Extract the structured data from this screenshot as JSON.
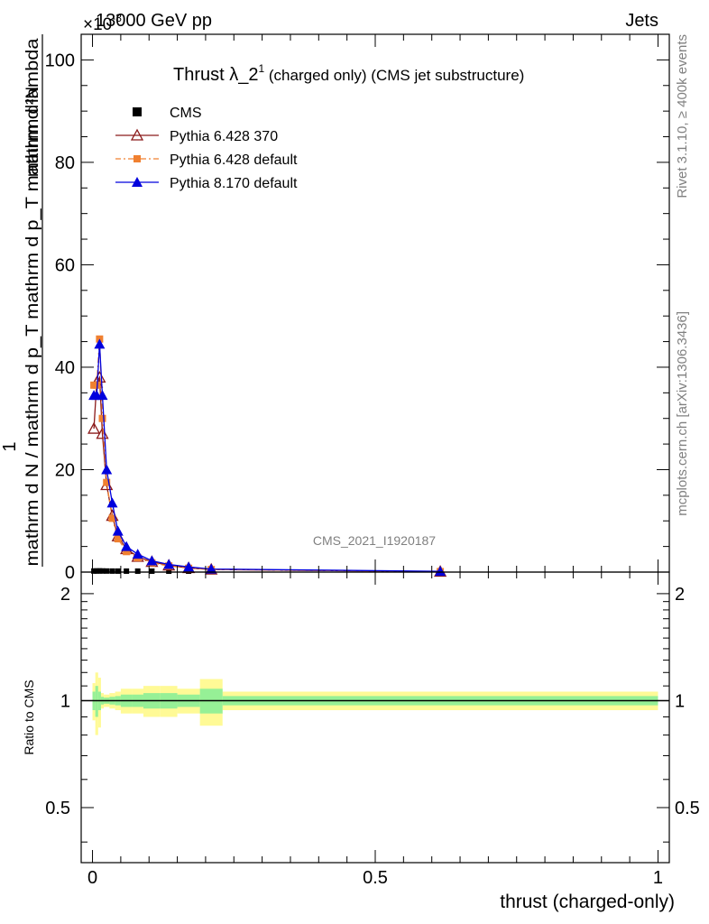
{
  "header": {
    "left": "13000 GeV pp",
    "right": "Jets",
    "exponent": "×10",
    "exponent_power": "-3"
  },
  "side": {
    "rivet": "Rivet 3.1.10, ≥ 400k events",
    "mcplots": "mcplots.cern.ch [arXiv:1306.3436]"
  },
  "watermark": "CMS_2021_I1920187",
  "chart_data": [
    {
      "type": "line",
      "title": "Thrust λ_2¹ (charged only) (CMS jet substructure)",
      "title_main": "Thrust λ_2",
      "title_sup": "1",
      "title_rest": " (charged only) (CMS jet substructure)",
      "xlabel": "thrust (charged-only)",
      "ylabel_num": "mathrm d²N",
      "ylabel_one": "1",
      "ylabel_den": "mathrm d N / mathrm d p_T mathrm d p_T mathrm d lambda",
      "xlim": [
        -0.02,
        1.02
      ],
      "ylim": [
        0,
        105
      ],
      "yticks": [
        0,
        20,
        40,
        60,
        80,
        100
      ],
      "ytick_labels": [
        "0",
        "20",
        "40",
        "60",
        "80",
        "100"
      ],
      "legend": "top-left",
      "series": [
        {
          "name": "CMS",
          "color": "#000000",
          "marker": "square",
          "x": [
            0.0025,
            0.0075,
            0.0125,
            0.0175,
            0.025,
            0.035,
            0.045,
            0.06,
            0.08,
            0.105,
            0.135,
            0.17,
            0.21,
            0.615
          ],
          "y": [
            0.03,
            0.04,
            0.05,
            0.04,
            0.03,
            0.02,
            0.015,
            0.01,
            0.007,
            0.004,
            0.003,
            0.002,
            0.001,
            0.0002
          ]
        },
        {
          "name": "Pythia 6.428 370",
          "color": "#8b1a1a",
          "marker": "triangle-open",
          "x": [
            0.0025,
            0.0075,
            0.0125,
            0.0175,
            0.025,
            0.035,
            0.045,
            0.06,
            0.08,
            0.105,
            0.135,
            0.17,
            0.21,
            0.615
          ],
          "y": [
            28,
            37,
            38,
            27,
            17,
            11,
            7,
            4.5,
            3,
            2,
            1.3,
            0.8,
            0.5,
            0.1
          ]
        },
        {
          "name": "Pythia 6.428 default",
          "color": "#f08030",
          "marker": "square",
          "x": [
            0.0025,
            0.0075,
            0.0125,
            0.0175,
            0.025,
            0.035,
            0.045,
            0.06,
            0.08,
            0.105,
            0.135,
            0.17,
            0.21,
            0.615
          ],
          "y": [
            36.5,
            36.5,
            45.5,
            30,
            17.5,
            10.5,
            6.5,
            4,
            2.8,
            1.8,
            1.2,
            0.75,
            0.5,
            0.1
          ]
        },
        {
          "name": "Pythia 8.170 default",
          "color": "#0000dd",
          "marker": "triangle",
          "x": [
            0.0025,
            0.0075,
            0.0125,
            0.0175,
            0.025,
            0.035,
            0.045,
            0.06,
            0.08,
            0.105,
            0.135,
            0.17,
            0.21,
            0.615
          ],
          "y": [
            34.5,
            34.5,
            44.5,
            34.5,
            20,
            13.5,
            8,
            5,
            3.5,
            2.2,
            1.5,
            1,
            0.6,
            0.15
          ]
        }
      ]
    },
    {
      "type": "area",
      "ylabel": "Ratio to CMS",
      "xlim": [
        -0.02,
        1.02
      ],
      "ylim": [
        0.35,
        2.3
      ],
      "log_scale": true,
      "yticks": [
        0.5,
        1,
        2
      ],
      "ytick_labels": [
        "0.5",
        "1",
        "2"
      ],
      "xticks": [
        0,
        0.5,
        1
      ],
      "xtick_labels": [
        "0",
        "0.5",
        "1"
      ],
      "reference": 1,
      "bands": {
        "edges": [
          0,
          0.005,
          0.01,
          0.015,
          0.02,
          0.03,
          0.04,
          0.05,
          0.07,
          0.09,
          0.12,
          0.15,
          0.19,
          0.23,
          1.0
        ],
        "outer": [
          0.12,
          0.2,
          0.16,
          0.05,
          0.04,
          0.05,
          0.06,
          0.08,
          0.08,
          0.1,
          0.1,
          0.08,
          0.15,
          0.06
        ],
        "inner": [
          0.06,
          0.1,
          0.06,
          0.025,
          0.02,
          0.025,
          0.03,
          0.04,
          0.04,
          0.05,
          0.05,
          0.04,
          0.08,
          0.03
        ],
        "outer_color": "#fffa96",
        "inner_color": "#96f096"
      }
    }
  ]
}
